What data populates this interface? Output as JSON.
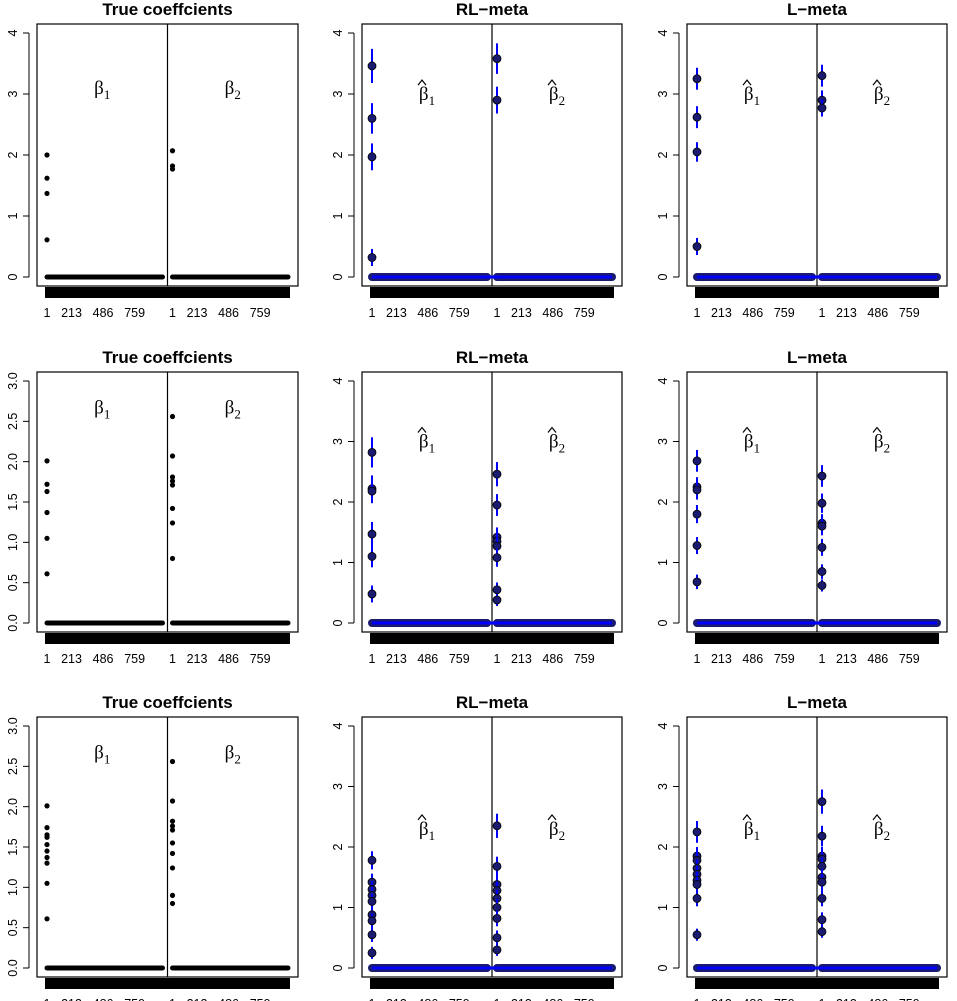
{
  "figure": {
    "x_tick_labels": [
      "1",
      "213",
      "486",
      "759",
      "1",
      "213",
      "486",
      "759"
    ],
    "n_coefficients_per_block": 1000
  },
  "colors": {
    "point": "#000000",
    "estimate_point": "#1a1a6e",
    "interval": "#0000ff",
    "frame": "#000000"
  },
  "chart_data": [
    {
      "type": "scatter",
      "title": "True coeffcients",
      "estimated": false,
      "ylim": [
        0,
        4
      ],
      "y_ticks": [
        "0",
        "1",
        "2",
        "3",
        "4"
      ],
      "labels": [
        "β",
        "β"
      ],
      "label_subscripts": [
        "1",
        "2"
      ],
      "label_y": 3,
      "beta1_nonzero": [
        2.0,
        1.62,
        1.37,
        0.61
      ],
      "beta2_nonzero": [
        2.07,
        1.82,
        1.77
      ],
      "beta1_ci": [],
      "beta2_ci": []
    },
    {
      "type": "scatter",
      "title": "RL−meta",
      "estimated": true,
      "ylim": [
        0,
        4
      ],
      "y_ticks": [
        "0",
        "1",
        "2",
        "3",
        "4"
      ],
      "labels": [
        "β",
        "β"
      ],
      "label_subscripts": [
        "1",
        "2"
      ],
      "label_y": 2.9,
      "beta1_nonzero": [
        3.46,
        2.6,
        1.97,
        0.32
      ],
      "beta2_nonzero": [
        3.58,
        2.9
      ],
      "beta1_ci": [
        0.28,
        0.25,
        0.22,
        0.14
      ],
      "beta2_ci": [
        0.25,
        0.22
      ]
    },
    {
      "type": "scatter",
      "title": "L−meta",
      "estimated": true,
      "ylim": [
        0,
        4
      ],
      "y_ticks": [
        "0",
        "1",
        "2",
        "3",
        "4"
      ],
      "labels": [
        "β",
        "β"
      ],
      "label_subscripts": [
        "1",
        "2"
      ],
      "label_y": 2.9,
      "beta1_nonzero": [
        3.25,
        2.62,
        2.05,
        0.5
      ],
      "beta2_nonzero": [
        3.3,
        2.9,
        2.77
      ],
      "beta1_ci": [
        0.18,
        0.18,
        0.16,
        0.14
      ],
      "beta2_ci": [
        0.18,
        0.16,
        0.14
      ]
    },
    {
      "type": "scatter",
      "title": "True coeffcients",
      "estimated": false,
      "ylim": [
        0,
        3
      ],
      "y_ticks": [
        "0.0",
        "0.5",
        "1.0",
        "1.5",
        "2.0",
        "2.5",
        "3.0"
      ],
      "labels": [
        "β",
        "β"
      ],
      "label_subscripts": [
        "1",
        "2"
      ],
      "label_y": 2.6,
      "beta1_nonzero": [
        2.01,
        1.72,
        1.63,
        1.37,
        1.05,
        0.61
      ],
      "beta2_nonzero": [
        2.56,
        2.07,
        1.81,
        1.76,
        1.71,
        1.42,
        1.24,
        0.8
      ],
      "beta1_ci": [],
      "beta2_ci": []
    },
    {
      "type": "scatter",
      "title": "RL−meta",
      "estimated": true,
      "ylim": [
        0,
        4
      ],
      "y_ticks": [
        "0",
        "1",
        "2",
        "3",
        "4"
      ],
      "labels": [
        "β",
        "β"
      ],
      "label_subscripts": [
        "1",
        "2"
      ],
      "label_y": 2.9,
      "beta1_nonzero": [
        2.82,
        2.22,
        2.18,
        1.47,
        1.1,
        0.48
      ],
      "beta2_nonzero": [
        2.46,
        1.95,
        1.42,
        1.35,
        1.27,
        1.08,
        0.55,
        0.38
      ],
      "beta1_ci": [
        0.25,
        0.22,
        0.2,
        0.2,
        0.18,
        0.14
      ],
      "beta2_ci": [
        0.2,
        0.18,
        0.16,
        0.16,
        0.15,
        0.15,
        0.12,
        0.1
      ]
    },
    {
      "type": "scatter",
      "title": "L−meta",
      "estimated": true,
      "ylim": [
        0,
        4
      ],
      "y_ticks": [
        "0",
        "1",
        "2",
        "3",
        "4"
      ],
      "labels": [
        "β",
        "β"
      ],
      "label_subscripts": [
        "1",
        "2"
      ],
      "label_y": 2.9,
      "beta1_nonzero": [
        2.68,
        2.25,
        2.2,
        1.8,
        1.28,
        0.68
      ],
      "beta2_nonzero": [
        2.43,
        1.98,
        1.65,
        1.6,
        1.25,
        0.85,
        0.62
      ],
      "beta1_ci": [
        0.18,
        0.16,
        0.16,
        0.15,
        0.14,
        0.12
      ],
      "beta2_ci": [
        0.18,
        0.16,
        0.15,
        0.15,
        0.14,
        0.12,
        0.1
      ]
    },
    {
      "type": "scatter",
      "title": "True coeffcients",
      "estimated": false,
      "ylim": [
        0,
        3
      ],
      "y_ticks": [
        "0.0",
        "0.5",
        "1.0",
        "1.5",
        "2.0",
        "2.5",
        "3.0"
      ],
      "labels": [
        "β",
        "β"
      ],
      "label_subscripts": [
        "1",
        "2"
      ],
      "label_y": 2.6,
      "beta1_nonzero": [
        2.01,
        1.74,
        1.65,
        1.62,
        1.53,
        1.45,
        1.37,
        1.3,
        1.05,
        0.61
      ],
      "beta2_nonzero": [
        2.56,
        2.07,
        1.82,
        1.76,
        1.71,
        1.55,
        1.42,
        1.24,
        0.9,
        0.8
      ],
      "beta1_ci": [],
      "beta2_ci": []
    },
    {
      "type": "scatter",
      "title": "RL−meta",
      "estimated": true,
      "ylim": [
        0,
        4
      ],
      "y_ticks": [
        "0",
        "1",
        "2",
        "3",
        "4"
      ],
      "labels": [
        "β",
        "β"
      ],
      "label_subscripts": [
        "1",
        "2"
      ],
      "label_y": 2.2,
      "beta1_nonzero": [
        1.78,
        1.42,
        1.3,
        1.2,
        1.1,
        0.88,
        0.78,
        0.55,
        0.25
      ],
      "beta2_nonzero": [
        2.35,
        1.68,
        1.38,
        1.28,
        1.15,
        1.0,
        0.82,
        0.5,
        0.3
      ],
      "beta1_ci": [
        0.15,
        0.14,
        0.14,
        0.14,
        0.13,
        0.13,
        0.12,
        0.12,
        0.1
      ],
      "beta2_ci": [
        0.2,
        0.16,
        0.15,
        0.15,
        0.14,
        0.14,
        0.13,
        0.12,
        0.1
      ]
    },
    {
      "type": "scatter",
      "title": "L−meta",
      "estimated": true,
      "ylim": [
        0,
        4
      ],
      "y_ticks": [
        "0",
        "1",
        "2",
        "3",
        "4"
      ],
      "labels": [
        "β",
        "β"
      ],
      "label_subscripts": [
        "1",
        "2"
      ],
      "label_y": 2.2,
      "beta1_nonzero": [
        2.25,
        1.85,
        1.78,
        1.65,
        1.55,
        1.45,
        1.38,
        1.15,
        0.55
      ],
      "beta2_nonzero": [
        2.75,
        2.18,
        1.85,
        1.8,
        1.68,
        1.5,
        1.42,
        1.15,
        0.8,
        0.6
      ],
      "beta1_ci": [
        0.18,
        0.15,
        0.15,
        0.14,
        0.14,
        0.14,
        0.13,
        0.13,
        0.1
      ],
      "beta2_ci": [
        0.2,
        0.17,
        0.15,
        0.15,
        0.15,
        0.14,
        0.14,
        0.13,
        0.12,
        0.1
      ]
    }
  ]
}
